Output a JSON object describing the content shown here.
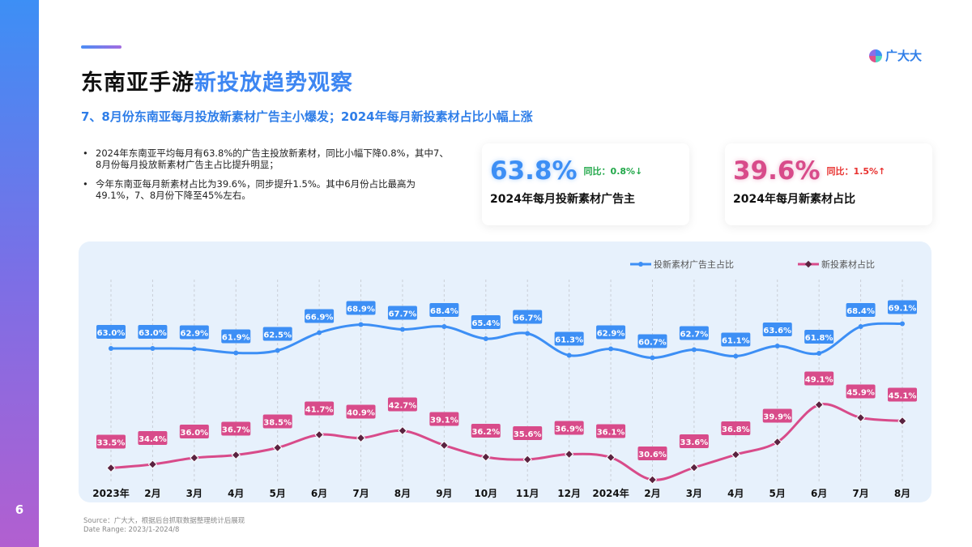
{
  "page_number": "6",
  "logo": {
    "text": "广大大"
  },
  "title": {
    "part1": "东南亚手游",
    "part2": "新投放趋势观察"
  },
  "subtitle": "7、8月份东南亚每月投放新素材广告主小爆发；2024年每月新投素材占比小幅上涨",
  "bullets": [
    "2024年东南亚平均每月有63.8%的广告主投放新素材，同比小幅下降0.8%，其中7、8月份每月投放新素材广告主占比提升明显；",
    "今年东南亚每月新素材占比为39.6%，同步提升1.5%。其中6月份占比最高为49.1%，7、8月份下降至45%左右。"
  ],
  "cards": [
    {
      "value": "63.8%",
      "yoy": "同比：0.8%↓",
      "label": "2024年每月投新素材广告主",
      "color": "#3d8ff5",
      "yoy_color": "#22a84a"
    },
    {
      "value": "39.6%",
      "yoy": "同比：1.5%↑",
      "label": "2024年每月新素材占比",
      "color": "#d84b8a",
      "yoy_color": "#e8312f"
    }
  ],
  "chart_data": {
    "type": "line",
    "categories": [
      "2023年",
      "2月",
      "3月",
      "4月",
      "5月",
      "6月",
      "7月",
      "8月",
      "9月",
      "10月",
      "11月",
      "12月",
      "2024年",
      "2月",
      "3月",
      "4月",
      "5月",
      "6月",
      "7月",
      "8月"
    ],
    "series": [
      {
        "name": "投新素材广告主占比",
        "color": "#3d8ff5",
        "values": [
          63.0,
          63.0,
          62.9,
          61.9,
          62.5,
          66.9,
          68.9,
          67.7,
          68.4,
          65.4,
          66.7,
          61.3,
          62.9,
          60.7,
          62.7,
          61.1,
          63.6,
          61.8,
          68.4,
          69.1
        ]
      },
      {
        "name": "新投素材占比",
        "color": "#d84b8a",
        "values": [
          33.5,
          34.4,
          36.0,
          36.7,
          38.5,
          41.7,
          40.9,
          42.7,
          39.1,
          36.2,
          35.6,
          36.9,
          36.1,
          30.6,
          33.6,
          36.8,
          39.9,
          49.1,
          45.9,
          45.1
        ]
      }
    ],
    "unit": "%",
    "legend": "top-right",
    "grid": "vertical dashed"
  },
  "source": "Source：广大大，根据后台抓取数据整理统计后展现",
  "date_range": "Date Range:  2023/1-2024/8"
}
